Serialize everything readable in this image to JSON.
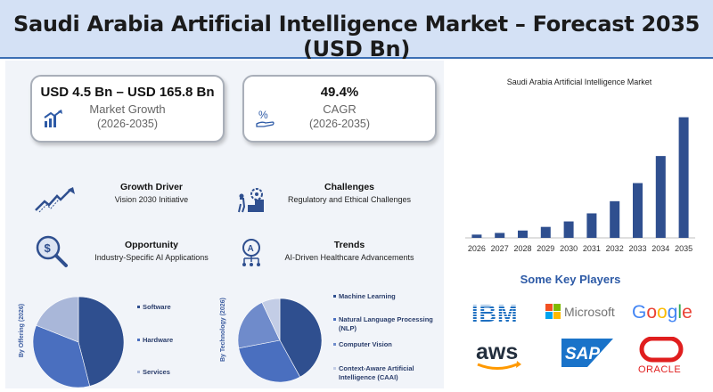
{
  "header": {
    "title": "Saudi Arabia Artificial Intelligence Market – Forecast 2035 (USD Bn)"
  },
  "stats": {
    "growth": {
      "value": "USD 4.5 Bn – USD 165.8 Bn",
      "label": "Market Growth",
      "period": "(2026-2035)",
      "icon": "growth-chart-icon"
    },
    "cagr": {
      "value": "49.4%",
      "label": "CAGR",
      "period": "(2026-2035)",
      "icon": "percent-hand-icon"
    }
  },
  "insights": {
    "growth_driver": {
      "title": "Growth Driver",
      "text": "Vision 2030 Initiative",
      "icon": "trend-arrow-icon"
    },
    "challenges": {
      "title": "Challenges",
      "text": "Regulatory and Ethical Challenges",
      "icon": "climbing-stairs-icon"
    },
    "opportunity": {
      "title": "Opportunity",
      "text": "Industry-Specific AI Applications",
      "icon": "magnifier-dollar-icon"
    },
    "trends": {
      "title": "Trends",
      "text": "AI-Driven Healthcare Advancements",
      "icon": "ai-brain-icon"
    }
  },
  "colors": {
    "header_bg": "#d4e1f5",
    "accent": "#2d5aa6",
    "bar": "#2f4f8f",
    "pie_dark": "#2f4f8f",
    "pie_mid": "#4a6fbf",
    "pie_light": "#a9b7d9"
  },
  "chart_data": [
    {
      "type": "bar",
      "title": "Saudi Arabia Artificial Intelligence Market",
      "categories": [
        "2026",
        "2027",
        "2028",
        "2029",
        "2030",
        "2031",
        "2032",
        "2033",
        "2034",
        "2035"
      ],
      "values": [
        4.5,
        6.8,
        10.1,
        15.1,
        22.6,
        33.7,
        50.4,
        75.3,
        112.5,
        165.8
      ],
      "grid": false,
      "xlabel": "",
      "ylabel": ""
    },
    {
      "type": "pie",
      "title": "By Offering (2026)",
      "categories": [
        "Software",
        "Hardware",
        "Services"
      ],
      "values": [
        46,
        35,
        19
      ],
      "colors": [
        "#2f4f8f",
        "#4a6fbf",
        "#a9b7d9"
      ]
    },
    {
      "type": "pie",
      "title": "By Technology (2026)",
      "categories": [
        "Machine Learning",
        "Natural Language Processing (NLP)",
        "Computer Vision",
        "Context-Aware Artificial Intelligence (CAAI)"
      ],
      "values": [
        42,
        30,
        21,
        7
      ],
      "colors": [
        "#2f4f8f",
        "#4a6fbf",
        "#6f8bcb",
        "#c3cde6"
      ]
    }
  ],
  "players": {
    "title": "Some Key Players",
    "logos": [
      "IBM",
      "Microsoft",
      "Google",
      "aws",
      "SAP",
      "ORACLE"
    ]
  }
}
